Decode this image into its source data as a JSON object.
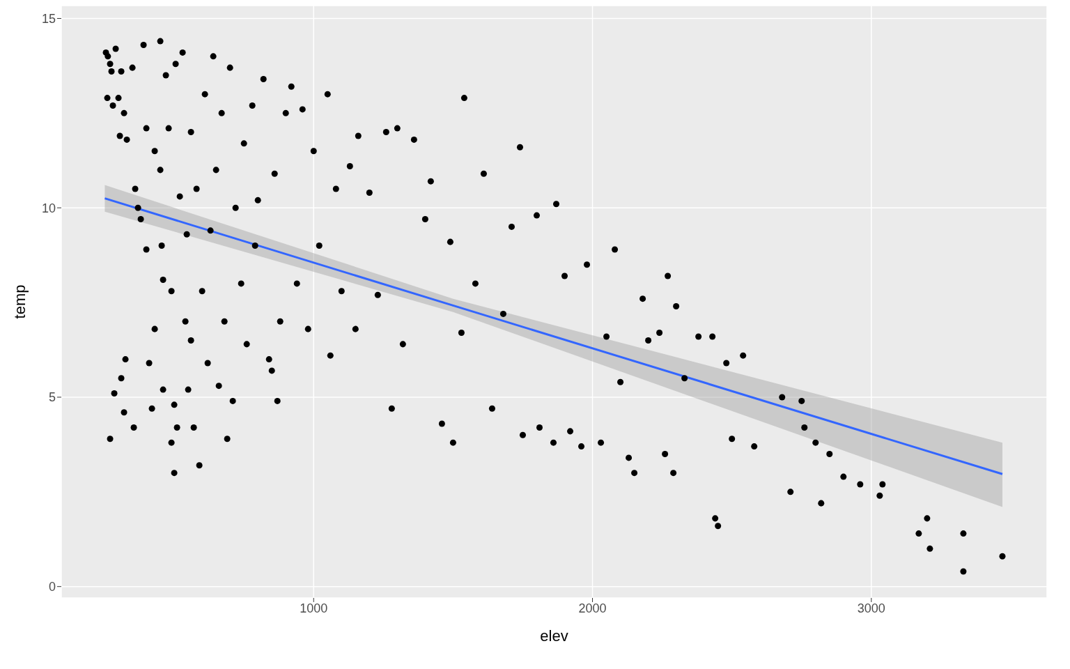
{
  "chart_data": {
    "type": "scatter",
    "xlabel": "elev",
    "ylabel": "temp",
    "xlim": [
      95,
      3630
    ],
    "ylim": [
      -0.3,
      15.34
    ],
    "xticks": [
      1000,
      2000,
      3000
    ],
    "yticks": [
      0,
      5,
      10,
      15
    ],
    "grid": true,
    "series": [
      {
        "marker": "circle",
        "color": "#000000",
        "x": [
          255,
          262,
          270,
          275,
          260,
          280,
          290,
          300,
          305,
          310,
          320,
          330,
          350,
          360,
          270,
          285,
          310,
          320,
          325,
          355,
          370,
          380,
          390,
          400,
          400,
          410,
          420,
          430,
          430,
          450,
          450,
          455,
          460,
          460,
          470,
          480,
          490,
          490,
          500,
          500,
          505,
          510,
          520,
          530,
          540,
          545,
          550,
          560,
          560,
          570,
          580,
          590,
          600,
          610,
          620,
          630,
          640,
          650,
          660,
          670,
          680,
          690,
          700,
          710,
          720,
          740,
          750,
          760,
          780,
          790,
          800,
          820,
          840,
          850,
          860,
          870,
          880,
          900,
          920,
          940,
          960,
          980,
          1000,
          1020,
          1050,
          1060,
          1080,
          1100,
          1130,
          1150,
          1160,
          1200,
          1230,
          1260,
          1280,
          1300,
          1320,
          1360,
          1400,
          1420,
          1460,
          1490,
          1500,
          1540,
          1530,
          1580,
          1610,
          1640,
          1680,
          1710,
          1740,
          1750,
          1800,
          1810,
          1860,
          1870,
          1900,
          1920,
          1960,
          1980,
          2030,
          2050,
          2080,
          2100,
          2130,
          2150,
          2180,
          2200,
          2240,
          2260,
          2270,
          2290,
          2300,
          2330,
          2380,
          2430,
          2440,
          2450,
          2480,
          2500,
          2540,
          2580,
          2680,
          2710,
          2750,
          2760,
          2800,
          2820,
          2850,
          2900,
          2960,
          3030,
          3040,
          3170,
          3200,
          3210,
          3330,
          3330,
          3470
        ],
        "values": [
          14.1,
          14.0,
          13.8,
          13.6,
          12.9,
          12.7,
          14.2,
          12.9,
          11.9,
          13.6,
          12.5,
          11.8,
          13.7,
          10.5,
          3.9,
          5.1,
          5.5,
          4.6,
          6.0,
          4.2,
          10.0,
          9.7,
          14.3,
          12.1,
          8.9,
          5.9,
          4.7,
          11.5,
          6.8,
          14.4,
          11.0,
          9.0,
          8.1,
          5.2,
          13.5,
          12.1,
          7.8,
          3.8,
          4.8,
          3.0,
          13.8,
          4.2,
          10.3,
          14.1,
          7.0,
          9.3,
          5.2,
          6.5,
          12.0,
          4.2,
          10.5,
          3.2,
          7.8,
          13.0,
          5.9,
          9.4,
          14.0,
          11.0,
          5.3,
          12.5,
          7.0,
          3.9,
          13.7,
          4.9,
          10.0,
          8.0,
          11.7,
          6.4,
          12.7,
          9.0,
          10.2,
          13.4,
          6.0,
          5.7,
          10.9,
          4.9,
          7.0,
          12.5,
          13.2,
          8.0,
          12.6,
          6.8,
          11.5,
          9.0,
          13.0,
          6.1,
          10.5,
          7.8,
          11.1,
          6.8,
          11.9,
          10.4,
          7.7,
          12.0,
          4.7,
          12.1,
          6.4,
          11.8,
          9.7,
          10.7,
          4.3,
          9.1,
          3.8,
          12.9,
          6.7,
          8.0,
          10.9,
          4.7,
          7.2,
          9.5,
          11.6,
          4.0,
          9.8,
          4.2,
          3.8,
          10.1,
          8.2,
          4.1,
          3.7,
          8.5,
          3.8,
          6.6,
          8.9,
          5.4,
          3.4,
          3.0,
          7.6,
          6.5,
          6.7,
          3.5,
          8.2,
          3.0,
          7.4,
          5.5,
          6.6,
          6.6,
          1.8,
          1.6,
          5.9,
          3.9,
          6.1,
          3.7,
          5.0,
          2.5,
          4.9,
          4.2,
          3.8,
          2.2,
          3.5,
          2.9,
          2.7,
          2.4,
          2.7,
          1.4,
          1.8,
          1.0,
          1.4,
          0.4,
          0.8
        ]
      },
      {
        "type": "line",
        "color": "#3366ff",
        "x": [
          251,
          1500,
          3470
        ],
        "values": [
          10.25,
          7.42,
          2.97
        ],
        "lower": [
          9.9,
          7.25,
          2.1
        ],
        "upper": [
          10.6,
          7.6,
          3.8
        ]
      }
    ]
  }
}
